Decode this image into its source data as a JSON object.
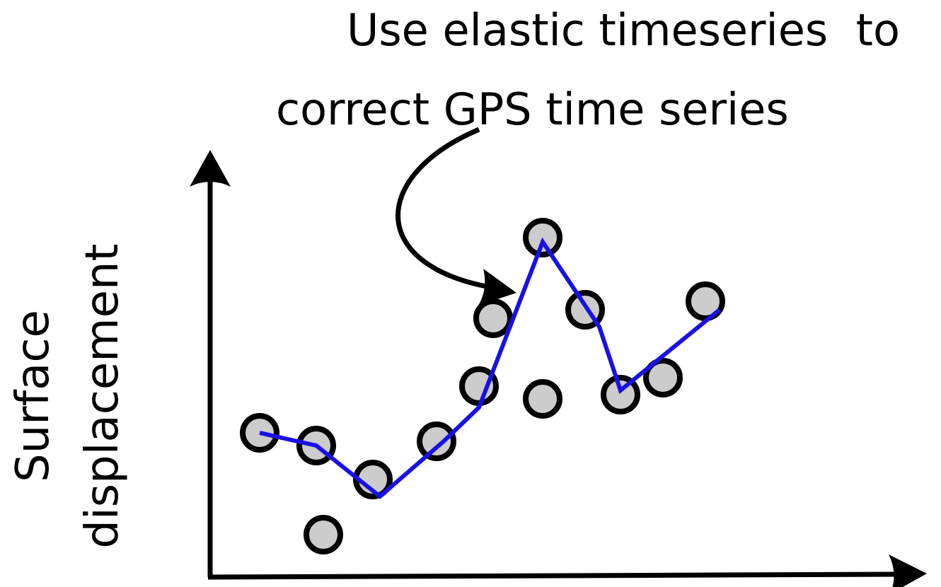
{
  "annotation": {
    "line1": "Use elastic timeseries  to",
    "line2": "correct GPS time series"
  },
  "y_axis_label": {
    "line1": "Surface",
    "line2": "displacement"
  },
  "colors": {
    "axis": "#000000",
    "point_fill": "#cccccc",
    "point_stroke": "#000000",
    "corrected_line": "#1a10e6"
  },
  "chart_data": {
    "type": "scatter",
    "x_range": [
      0,
      10
    ],
    "y_range": [
      0,
      10
    ],
    "grid": false,
    "observed_points": [
      {
        "x": 0.7,
        "y": 3.4
      },
      {
        "x": 1.5,
        "y": 3.1
      },
      {
        "x": 1.6,
        "y": 1.0
      },
      {
        "x": 2.3,
        "y": 2.3
      },
      {
        "x": 3.2,
        "y": 3.2
      },
      {
        "x": 3.8,
        "y": 4.5
      },
      {
        "x": 4.0,
        "y": 6.1
      },
      {
        "x": 4.7,
        "y": 4.2
      },
      {
        "x": 4.7,
        "y": 8.0
      },
      {
        "x": 5.3,
        "y": 6.3
      },
      {
        "x": 5.8,
        "y": 4.3
      },
      {
        "x": 6.4,
        "y": 4.7
      },
      {
        "x": 7.0,
        "y": 6.5
      }
    ],
    "corrected_series": [
      {
        "x": 0.7,
        "y": 3.4
      },
      {
        "x": 1.5,
        "y": 3.1
      },
      {
        "x": 2.4,
        "y": 1.9
      },
      {
        "x": 3.3,
        "y": 3.2
      },
      {
        "x": 3.8,
        "y": 4.0
      },
      {
        "x": 4.7,
        "y": 7.9
      },
      {
        "x": 5.5,
        "y": 5.9
      },
      {
        "x": 5.8,
        "y": 4.4
      },
      {
        "x": 7.2,
        "y": 6.3
      }
    ]
  }
}
